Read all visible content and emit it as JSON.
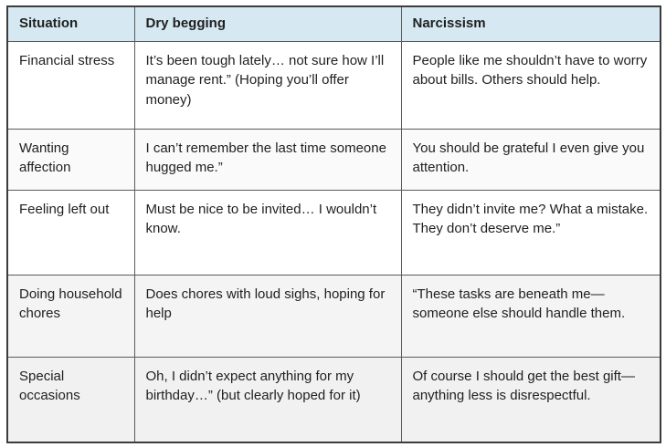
{
  "table": {
    "headers": [
      "Situation",
      "Dry begging",
      "Narcissism"
    ],
    "rows": [
      {
        "situation": "Financial stress",
        "dry_begging": "It’s been tough lately… not sure how I’ll manage rent.” (Hoping you’ll offer money)",
        "narcissism": "People like me shouldn’t have to worry about bills. Others should help."
      },
      {
        "situation": "Wanting affection",
        "dry_begging": "I can’t remember the last time someone hugged me.”",
        "narcissism": "You should be grateful I even give you attention."
      },
      {
        "situation": "Feeling left out",
        "dry_begging": "Must be nice to be invited… I wouldn’t know.",
        "narcissism": "They didn’t invite me? What a mistake. They don’t deserve me.”"
      },
      {
        "situation": "Doing household chores",
        "dry_begging": "Does chores with loud sighs, hoping for help",
        "narcissism": "“These tasks are beneath me—someone else should handle them."
      },
      {
        "situation": "Special occasions",
        "dry_begging": "Oh, I didn’t expect anything for my birthday…” (but clearly hoped for it)",
        "narcissism": "Of course I should get the best gift—anything less is disrespectful."
      }
    ]
  },
  "colors": {
    "header_background": "#d6e9f2",
    "border": "#5a5a5a",
    "outer_border": "#3c3c3c",
    "text": "#1f1f1f",
    "stripe": "#f1f1f1"
  }
}
